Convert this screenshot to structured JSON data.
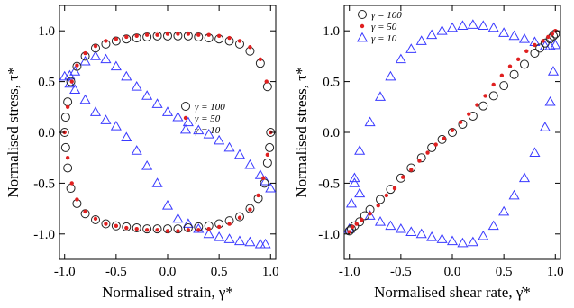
{
  "chart_data": [
    {
      "type": "scatter",
      "xlabel": "Normalised strain, γ*",
      "ylabel": "Normalised stress, τ*",
      "xlim": [
        -1.05,
        1.05
      ],
      "ylim": [
        -1.25,
        1.25
      ],
      "xticks": [
        "-1.0",
        "-0.5",
        "0.0",
        "0.5",
        "1.0"
      ],
      "yticks": [
        "-1.0",
        "-0.5",
        "0.0",
        "0.5",
        "1.0"
      ],
      "xtick_values": [
        -1.0,
        -0.5,
        0.0,
        0.5,
        1.0
      ],
      "ytick_values": [
        -1.0,
        -0.5,
        0.0,
        0.5,
        1.0
      ],
      "legend_position": "center-right",
      "series": [
        {
          "name": "γ = 100",
          "marker": "open-circle",
          "color": "#222222",
          "x": [
            1.0,
            0.97,
            0.9,
            0.8,
            0.7,
            0.6,
            0.5,
            0.4,
            0.3,
            0.2,
            0.1,
            0.0,
            -0.1,
            -0.2,
            -0.3,
            -0.4,
            -0.5,
            -0.6,
            -0.7,
            -0.8,
            -0.88,
            -0.94,
            -0.97,
            -0.99,
            -1.0,
            -0.99,
            -0.97,
            -0.94,
            -0.88,
            -0.8,
            -0.7,
            -0.6,
            -0.5,
            -0.4,
            -0.3,
            -0.2,
            -0.1,
            0.0,
            0.1,
            0.2,
            0.3,
            0.4,
            0.5,
            0.6,
            0.7,
            0.8,
            0.88,
            0.94,
            0.97,
            0.99
          ],
          "y": [
            0.0,
            0.45,
            0.68,
            0.8,
            0.87,
            0.9,
            0.92,
            0.93,
            0.94,
            0.95,
            0.95,
            0.95,
            0.95,
            0.94,
            0.93,
            0.92,
            0.9,
            0.87,
            0.83,
            0.75,
            0.65,
            0.5,
            0.3,
            0.15,
            0.0,
            -0.15,
            -0.35,
            -0.55,
            -0.7,
            -0.8,
            -0.86,
            -0.9,
            -0.92,
            -0.93,
            -0.94,
            -0.95,
            -0.95,
            -0.95,
            -0.95,
            -0.94,
            -0.93,
            -0.92,
            -0.9,
            -0.87,
            -0.83,
            -0.75,
            -0.65,
            -0.5,
            -0.3,
            -0.15
          ]
        },
        {
          "name": "γ = 50",
          "marker": "dot",
          "color": "#e02020",
          "x": [
            1.0,
            0.96,
            0.9,
            0.8,
            0.7,
            0.6,
            0.5,
            0.4,
            0.3,
            0.2,
            0.1,
            0.0,
            -0.1,
            -0.2,
            -0.3,
            -0.4,
            -0.5,
            -0.6,
            -0.7,
            -0.8,
            -0.88,
            -0.93,
            -0.97,
            -1.0,
            -0.97,
            -0.93,
            -0.88,
            -0.8,
            -0.7,
            -0.6,
            -0.5,
            -0.4,
            -0.3,
            -0.2,
            -0.1,
            0.0,
            0.1,
            0.2,
            0.3,
            0.4,
            0.5,
            0.6,
            0.7,
            0.8,
            0.88,
            0.93,
            0.97
          ],
          "y": [
            0.0,
            0.5,
            0.72,
            0.84,
            0.9,
            0.93,
            0.95,
            0.96,
            0.96,
            0.97,
            0.97,
            0.97,
            0.96,
            0.96,
            0.95,
            0.94,
            0.92,
            0.9,
            0.85,
            0.78,
            0.66,
            0.5,
            0.25,
            0.0,
            -0.25,
            -0.5,
            -0.66,
            -0.78,
            -0.85,
            -0.9,
            -0.92,
            -0.94,
            -0.95,
            -0.96,
            -0.96,
            -0.97,
            -0.97,
            -0.96,
            -0.96,
            -0.95,
            -0.93,
            -0.9,
            -0.84,
            -0.76,
            -0.62,
            -0.45,
            -0.22
          ]
        },
        {
          "name": "γ = 10",
          "marker": "open-triangle",
          "color": "#3a3aff",
          "x": [
            1.0,
            0.95,
            0.9,
            0.8,
            0.7,
            0.6,
            0.5,
            0.4,
            0.3,
            0.2,
            0.1,
            0.0,
            -0.1,
            -0.2,
            -0.3,
            -0.4,
            -0.5,
            -0.6,
            -0.7,
            -0.8,
            -0.9,
            -0.95,
            -1.0,
            -0.95,
            -0.9,
            -0.8,
            -0.7,
            -0.6,
            -0.5,
            -0.4,
            -0.3,
            -0.2,
            -0.1,
            0.0,
            0.1,
            0.2,
            0.3,
            0.4,
            0.5,
            0.6,
            0.7,
            0.8,
            0.9,
            0.95
          ],
          "y": [
            -0.55,
            -0.48,
            -0.42,
            -0.32,
            -0.22,
            -0.15,
            -0.08,
            -0.02,
            0.02,
            0.1,
            0.15,
            0.2,
            0.28,
            0.36,
            0.45,
            0.55,
            0.65,
            0.72,
            0.75,
            0.7,
            0.6,
            0.56,
            0.55,
            0.48,
            0.42,
            0.32,
            0.2,
            0.12,
            0.06,
            -0.05,
            -0.18,
            -0.33,
            -0.5,
            -0.72,
            -0.85,
            -0.9,
            -0.95,
            -1.0,
            -1.03,
            -1.05,
            -1.07,
            -1.08,
            -1.1,
            -1.1
          ]
        }
      ]
    },
    {
      "type": "scatter",
      "xlabel": "Normalised shear rate, γ̇*",
      "ylabel": "Normalised stress, τ*",
      "xlim": [
        -1.05,
        1.05
      ],
      "ylim": [
        -1.25,
        1.25
      ],
      "xticks": [
        "-1.0",
        "-0.5",
        "0.0",
        "0.5",
        "1.0"
      ],
      "yticks": [
        "-1.0",
        "-0.5",
        "0.0",
        "0.5",
        "1.0"
      ],
      "xtick_values": [
        -1.0,
        -0.5,
        0.0,
        0.5,
        1.0
      ],
      "ytick_values": [
        -1.0,
        -0.5,
        0.0,
        0.5,
        1.0
      ],
      "legend_position": "top-left",
      "series": [
        {
          "name": "γ = 100",
          "marker": "open-circle",
          "color": "#222222",
          "x": [
            -1.0,
            -0.98,
            -0.95,
            -0.9,
            -0.85,
            -0.8,
            -0.7,
            -0.6,
            -0.5,
            -0.4,
            -0.3,
            -0.2,
            -0.1,
            0.0,
            0.1,
            0.2,
            0.3,
            0.4,
            0.5,
            0.6,
            0.7,
            0.8,
            0.85,
            0.9,
            0.95,
            0.98,
            1.0
          ],
          "y": [
            -0.97,
            -0.95,
            -0.92,
            -0.88,
            -0.82,
            -0.76,
            -0.66,
            -0.56,
            -0.45,
            -0.35,
            -0.25,
            -0.15,
            -0.07,
            0.0,
            0.08,
            0.16,
            0.26,
            0.36,
            0.46,
            0.57,
            0.67,
            0.78,
            0.83,
            0.88,
            0.92,
            0.95,
            0.97
          ]
        },
        {
          "name": "γ = 50",
          "marker": "dot",
          "color": "#e02020",
          "x": [
            -1.0,
            -0.97,
            -0.93,
            -0.88,
            -0.8,
            -0.72,
            -0.64,
            -0.56,
            -0.48,
            -0.4,
            -0.32,
            -0.24,
            -0.16,
            -0.08,
            0.0,
            0.08,
            0.16,
            0.24,
            0.32,
            0.4,
            0.48,
            0.56,
            0.64,
            0.72,
            0.8,
            0.88,
            0.93,
            0.97,
            1.0
          ],
          "y": [
            -0.98,
            -0.93,
            -0.9,
            -0.86,
            -0.8,
            -0.72,
            -0.62,
            -0.55,
            -0.44,
            -0.37,
            -0.28,
            -0.2,
            -0.12,
            -0.06,
            0.02,
            0.1,
            0.18,
            0.27,
            0.36,
            0.47,
            0.56,
            0.65,
            0.72,
            0.8,
            0.86,
            0.9,
            0.94,
            0.97,
            1.0
          ]
        },
        {
          "name": "γ = 10",
          "marker": "open-triangle",
          "color": "#3a3aff",
          "x": [
            -1.0,
            -0.98,
            -0.95,
            -0.9,
            -0.8,
            -0.7,
            -0.6,
            -0.5,
            -0.4,
            -0.3,
            -0.2,
            -0.1,
            0.0,
            0.1,
            0.2,
            0.3,
            0.4,
            0.5,
            0.6,
            0.7,
            0.8,
            0.9,
            0.95,
            1.0,
            0.98,
            0.95,
            0.9,
            0.8,
            0.7,
            0.6,
            0.5,
            0.4,
            0.3,
            0.2,
            0.1,
            0.0,
            -0.1,
            -0.2,
            -0.3,
            -0.4,
            -0.5,
            -0.6,
            -0.7,
            -0.8,
            -0.9,
            -0.95
          ],
          "y": [
            -0.95,
            -0.7,
            -0.45,
            -0.18,
            0.1,
            0.35,
            0.55,
            0.72,
            0.82,
            0.9,
            0.96,
            1.0,
            1.03,
            1.05,
            1.06,
            1.05,
            1.03,
            0.98,
            0.95,
            0.92,
            0.89,
            0.85,
            0.85,
            0.86,
            0.6,
            0.3,
            0.05,
            -0.2,
            -0.45,
            -0.62,
            -0.78,
            -0.92,
            -1.02,
            -1.08,
            -1.09,
            -1.07,
            -1.05,
            -1.03,
            -1.0,
            -0.98,
            -0.95,
            -0.92,
            -0.88,
            -0.82,
            -0.6,
            -0.5
          ]
        }
      ]
    }
  ]
}
